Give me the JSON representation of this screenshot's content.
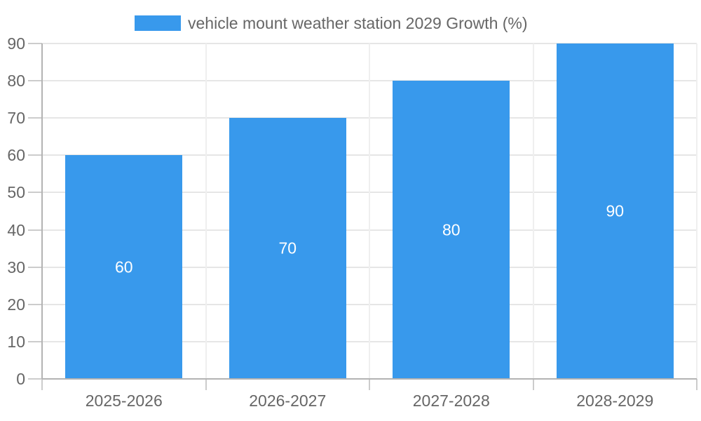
{
  "chart_data": {
    "type": "bar",
    "title": "vehicle mount weather station 2029 Growth (%)",
    "categories": [
      "2025-2026",
      "2026-2027",
      "2027-2028",
      "2028-2029"
    ],
    "values": [
      60,
      70,
      80,
      90
    ],
    "bar_value_labels": [
      "60",
      "70",
      "80",
      "90"
    ],
    "yticks": [
      0,
      10,
      20,
      30,
      40,
      50,
      60,
      70,
      80,
      90
    ],
    "ylim": [
      0,
      90
    ],
    "xlabel": "",
    "ylabel": "",
    "grid": true,
    "legend_position": "top",
    "colors": {
      "bar": "#3899EC",
      "bar_value_text": "#ffffff",
      "axis_text": "#666666",
      "hgrid": "#e6e6e6",
      "vgrid": "#efefef",
      "tick": "#cccccc",
      "axis_line": "#b3b3b3"
    }
  },
  "legend": {
    "label": "vehicle mount weather station 2029 Growth (%)"
  }
}
